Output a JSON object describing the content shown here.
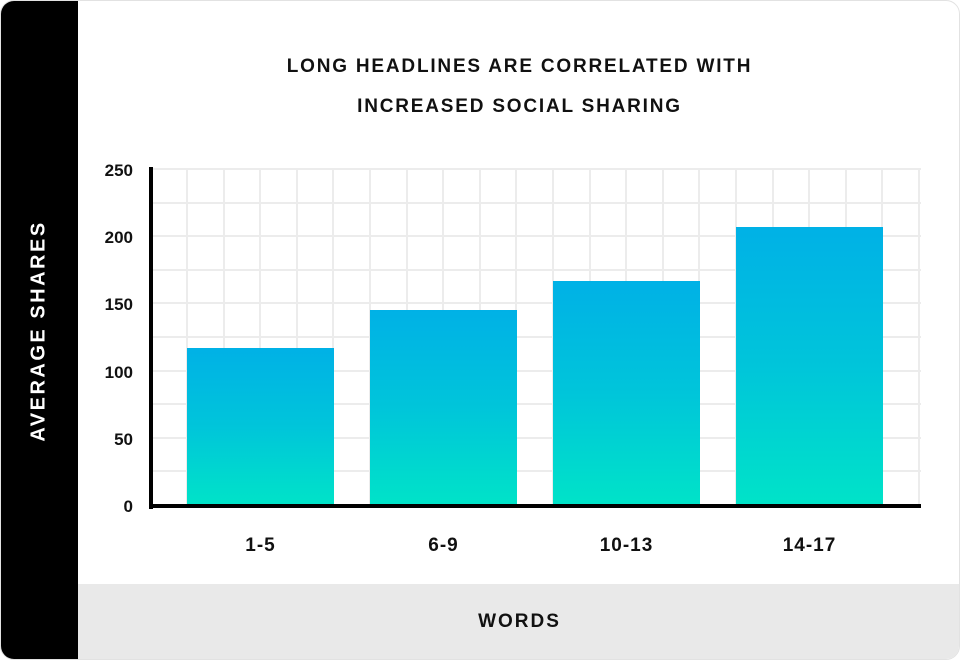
{
  "chart_data": {
    "type": "bar",
    "title": "LONG HEADLINES ARE CORRELATED WITH INCREASED SOCIAL SHARING",
    "title_lines": [
      "LONG HEADLINES ARE CORRELATED WITH",
      "INCREASED SOCIAL SHARING"
    ],
    "categories": [
      "1-5",
      "6-9",
      "10-13",
      "14-17"
    ],
    "values": [
      117,
      145,
      167,
      207
    ],
    "xlabel": "WORDS",
    "ylabel": "AVERAGE SHARES",
    "ylim": [
      0,
      250
    ],
    "yticks": [
      "250",
      "200",
      "150",
      "100",
      "50",
      "0"
    ],
    "grid": true,
    "legend": null,
    "bar_gradient": [
      "#00b1e6",
      "#00e3c8"
    ]
  }
}
